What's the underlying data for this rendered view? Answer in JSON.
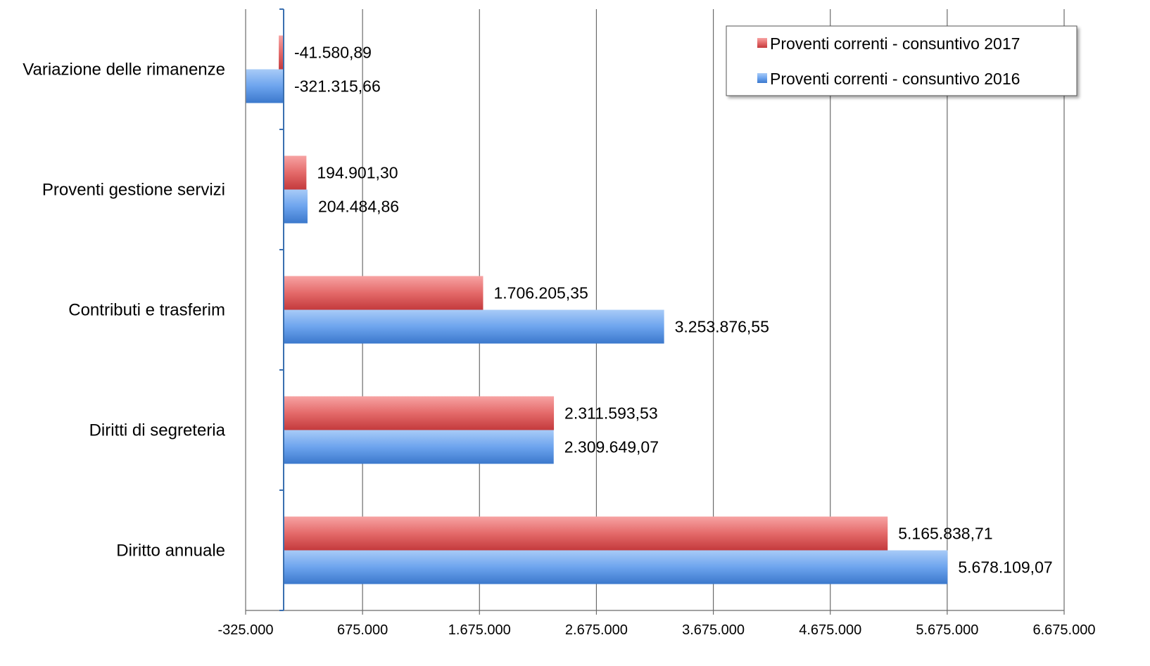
{
  "chart_data": {
    "type": "bar",
    "orientation": "horizontal",
    "categories": [
      "Variazione delle rimanenze",
      "Proventi gestione servizi",
      "Contributi e trasferim",
      "Diritti di segreteria",
      "Diritto annuale"
    ],
    "series": [
      {
        "name": "Proventi correnti - consuntivo 2017",
        "color": "#d9464a",
        "values": [
          -41580.89,
          194901.3,
          1706205.35,
          2311593.53,
          5165838.71
        ],
        "labels": [
          "-41.580,89",
          "194.901,30",
          "1.706.205,35",
          "2.311.593,53",
          "5.165.838,71"
        ]
      },
      {
        "name": "Proventi correnti - consuntivo 2016",
        "color": "#4a86d9",
        "values": [
          -321315.66,
          204484.86,
          3253876.55,
          2309649.07,
          5678109.07
        ],
        "labels": [
          "-321.315,66",
          "204.484,86",
          "3.253.876,55",
          "2.309.649,07",
          "5.678.109,07"
        ]
      }
    ],
    "x_ticks": [
      -325000,
      675000,
      1675000,
      2675000,
      3675000,
      4675000,
      5675000,
      6675000
    ],
    "x_tick_labels": [
      "-325.000",
      "675.000",
      "1.675.000",
      "2.675.000",
      "3.675.000",
      "4.675.000",
      "5.675.000",
      "6.675.000"
    ],
    "xlim": [
      -325000,
      6675000
    ],
    "grid": "vertical",
    "legend_position": "top-right"
  }
}
